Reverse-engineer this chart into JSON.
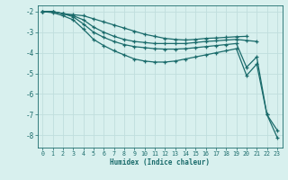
{
  "xlabel": "Humidex (Indice chaleur)",
  "bg_color": "#d8f0ee",
  "grid_color": "#c0dedd",
  "line_color": "#1a6b6b",
  "xlim": [
    -0.5,
    23.5
  ],
  "ylim": [
    -8.6,
    -1.7
  ],
  "xticks": [
    0,
    1,
    2,
    3,
    4,
    5,
    6,
    7,
    8,
    9,
    10,
    11,
    12,
    13,
    14,
    15,
    16,
    17,
    18,
    19,
    20,
    21,
    22,
    23
  ],
  "yticks": [
    -2,
    -3,
    -4,
    -5,
    -6,
    -7,
    -8
  ],
  "line1_x": [
    0,
    1,
    2,
    3,
    4,
    5,
    6,
    7,
    8,
    9,
    10,
    11,
    12,
    13,
    14,
    15,
    16,
    17,
    18,
    19,
    20
  ],
  "line1_y": [
    -2.0,
    -2.0,
    -2.1,
    -2.15,
    -2.2,
    -2.35,
    -2.5,
    -2.65,
    -2.8,
    -2.95,
    -3.1,
    -3.2,
    -3.3,
    -3.35,
    -3.38,
    -3.35,
    -3.3,
    -3.28,
    -3.25,
    -3.22,
    -3.2
  ],
  "line2_x": [
    0,
    1,
    2,
    3,
    4,
    5,
    6,
    7,
    8,
    9,
    10,
    11,
    12,
    13,
    14,
    15,
    16,
    17,
    18,
    19,
    20,
    21
  ],
  "line2_y": [
    -2.0,
    -2.0,
    -2.1,
    -2.2,
    -2.4,
    -2.75,
    -3.0,
    -3.2,
    -3.35,
    -3.45,
    -3.5,
    -3.55,
    -3.55,
    -3.55,
    -3.55,
    -3.5,
    -3.45,
    -3.42,
    -3.38,
    -3.35,
    -3.4,
    -3.45
  ],
  "line3_x": [
    0,
    1,
    2,
    3,
    4,
    5,
    6,
    7,
    8,
    9,
    10,
    11,
    12,
    13,
    14,
    15,
    16,
    17,
    18,
    19,
    20,
    21,
    22,
    23
  ],
  "line3_y": [
    -2.0,
    -2.0,
    -2.1,
    -2.25,
    -2.6,
    -3.0,
    -3.25,
    -3.45,
    -3.6,
    -3.7,
    -3.75,
    -3.8,
    -3.82,
    -3.82,
    -3.8,
    -3.75,
    -3.7,
    -3.65,
    -3.6,
    -3.55,
    -4.7,
    -4.2,
    -7.0,
    -7.75
  ],
  "line4_x": [
    0,
    1,
    2,
    3,
    4,
    5,
    6,
    7,
    8,
    9,
    10,
    11,
    12,
    13,
    14,
    15,
    16,
    17,
    18,
    19,
    20,
    21,
    22,
    23
  ],
  "line4_y": [
    -2.0,
    -2.05,
    -2.2,
    -2.4,
    -2.85,
    -3.35,
    -3.65,
    -3.9,
    -4.1,
    -4.3,
    -4.4,
    -4.45,
    -4.45,
    -4.4,
    -4.3,
    -4.2,
    -4.1,
    -4.0,
    -3.9,
    -3.8,
    -5.1,
    -4.55,
    -7.0,
    -8.1
  ]
}
